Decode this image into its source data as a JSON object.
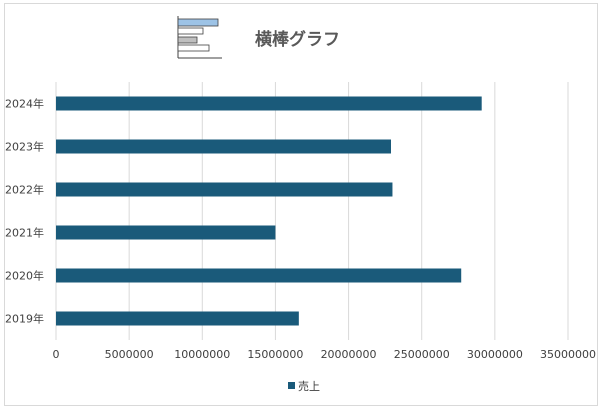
{
  "chart_data": {
    "type": "bar",
    "orientation": "horizontal",
    "title": "横棒グラフ",
    "categories": [
      "2024年",
      "2023年",
      "2022年",
      "2021年",
      "2020年",
      "2019年"
    ],
    "series": [
      {
        "name": "売上",
        "values": [
          29100000,
          22900000,
          23000000,
          15000000,
          27700000,
          16600000
        ]
      }
    ],
    "xlim": [
      0,
      35000000
    ],
    "x_ticks": [
      "0",
      "5000000",
      "10000000",
      "15000000",
      "20000000",
      "25000000",
      "30000000",
      "35000000"
    ],
    "grid": true,
    "legend": "bottom",
    "colors": {
      "bar": "#1a5a7a",
      "grid": "#d9d9d9",
      "logo_bar": "#9dc3e6",
      "logo_gray": "#bfbfbf"
    }
  }
}
